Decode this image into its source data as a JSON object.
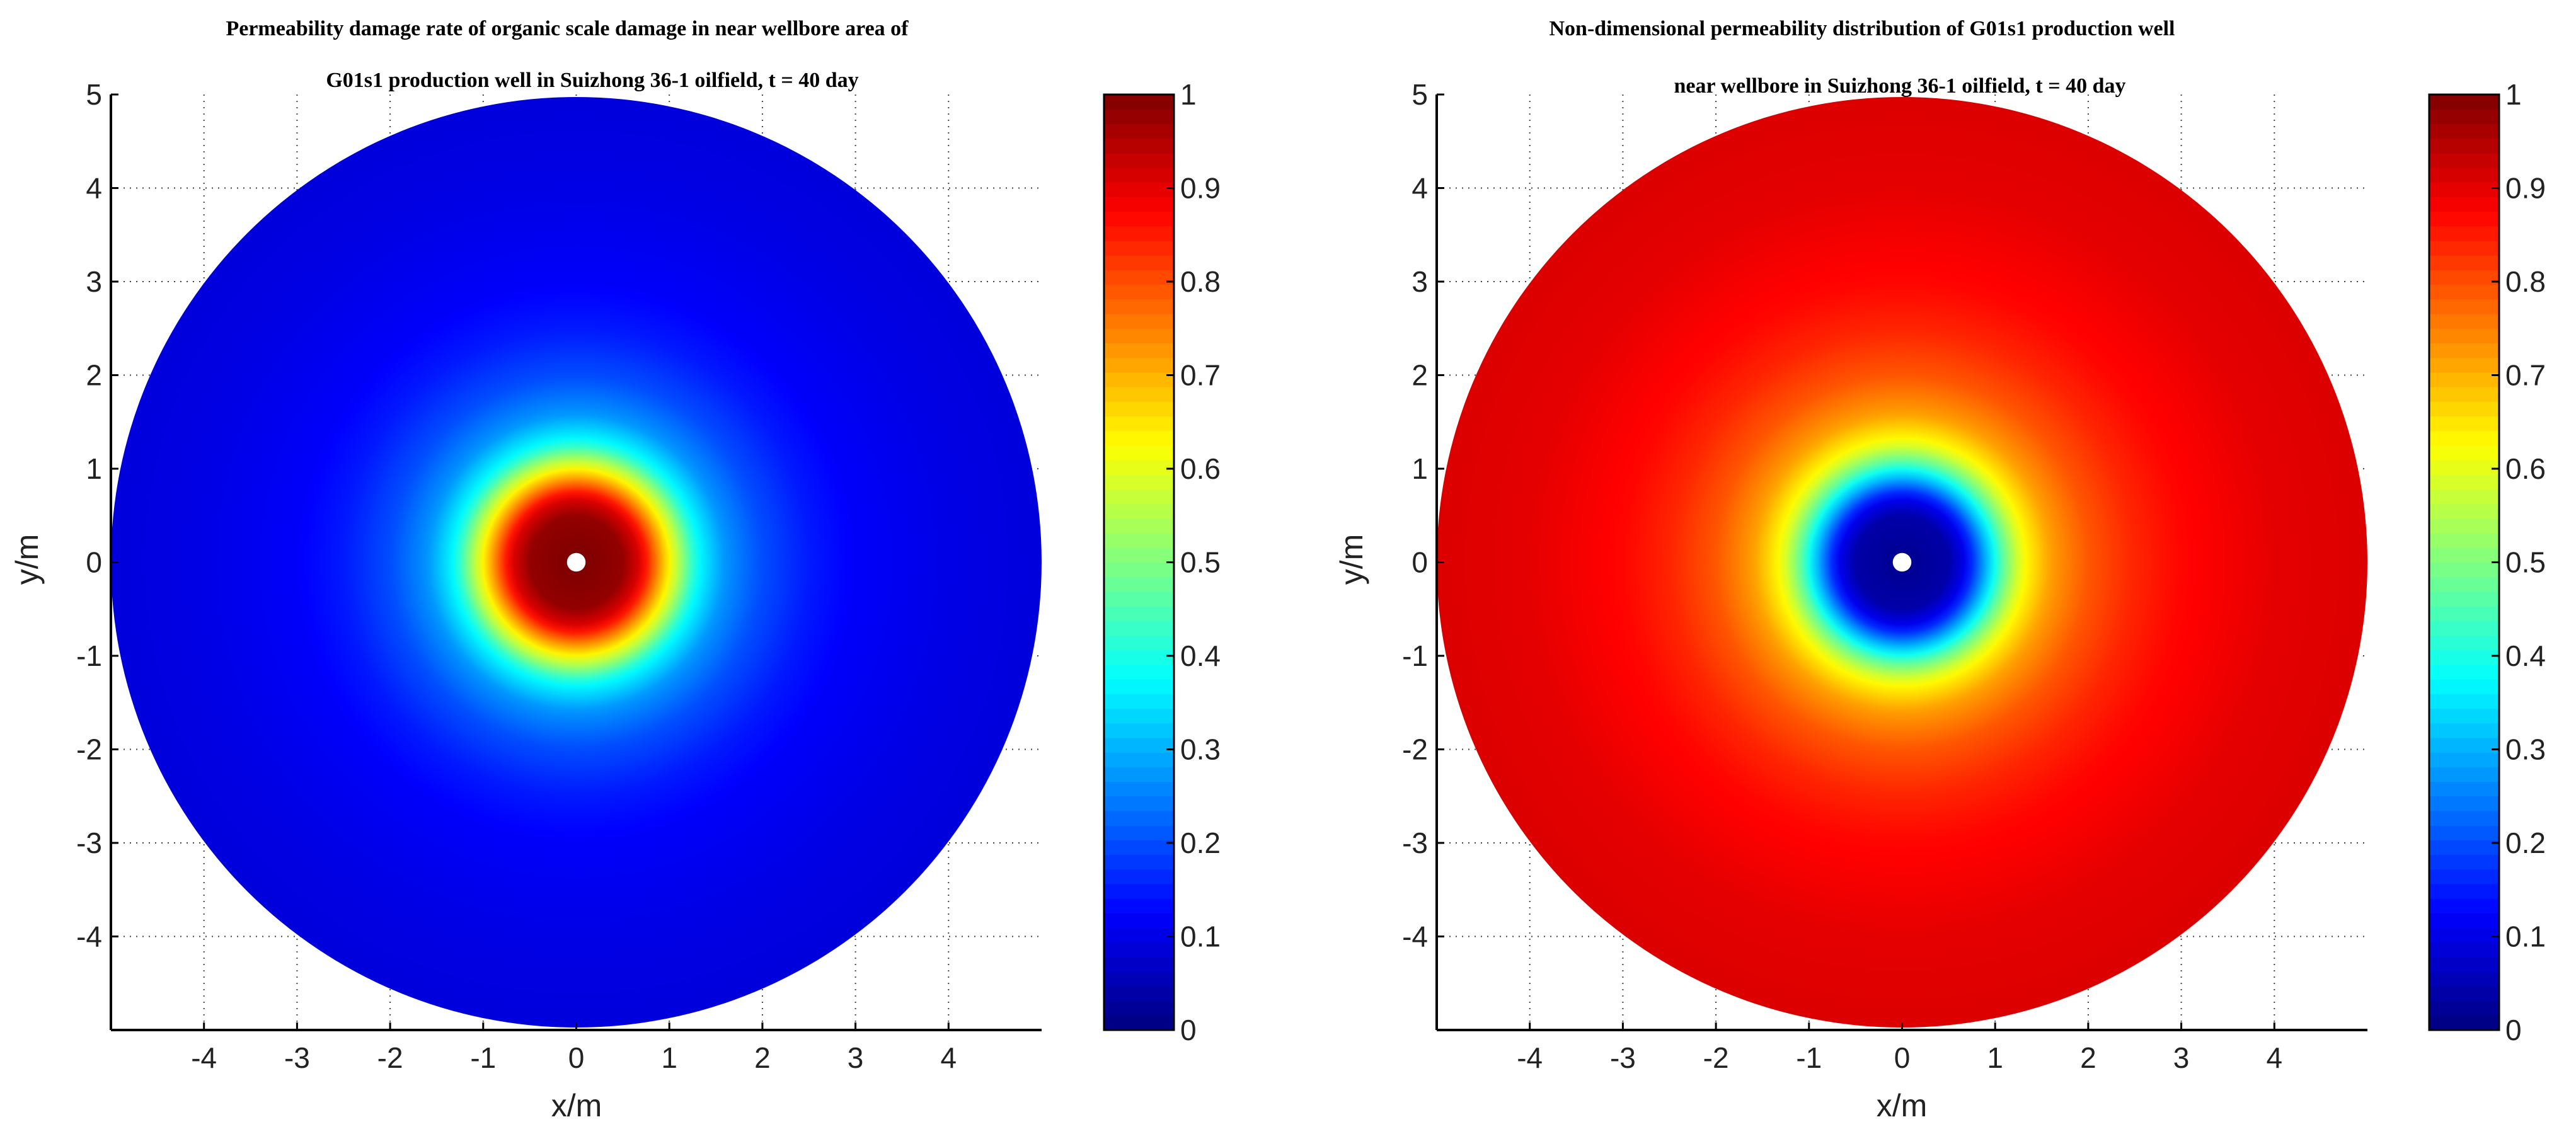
{
  "chart_data": [
    {
      "type": "heatmap",
      "title_line1": "Permeability damage rate of organic scale damage in near wellbore area of",
      "title_line2": "G01s1 production well in Suizhong 36-1 oilfield,  t = 40 day",
      "xlabel": "x/m",
      "ylabel": "y/m",
      "xlim": [
        -5,
        5
      ],
      "ylim": [
        -5,
        5
      ],
      "xticks": [
        "-4",
        "-3",
        "-2",
        "-1",
        "0",
        "1",
        "2",
        "3",
        "4"
      ],
      "yticks": [
        "5",
        "4",
        "3",
        "2",
        "1",
        "0",
        "-1",
        "-2",
        "-3",
        "-4"
      ],
      "grid": true,
      "colormap": "jet",
      "clim": [
        0,
        1
      ],
      "colorbar_ticks": [
        "1",
        "0.9",
        "0.8",
        "0.7",
        "0.6",
        "0.5",
        "0.4",
        "0.3",
        "0.2",
        "0.1",
        "0"
      ],
      "domain_radius": 5,
      "wellbore_radius": 0.1,
      "radial_profile": {
        "r": [
          0.1,
          0.5,
          0.7,
          0.9,
          1.1,
          1.3,
          1.6,
          2.0,
          2.5,
          3.0,
          4.0,
          5.0
        ],
        "value": [
          1.0,
          0.98,
          0.9,
          0.72,
          0.55,
          0.38,
          0.27,
          0.2,
          0.15,
          0.12,
          0.1,
          0.09
        ]
      }
    },
    {
      "type": "heatmap",
      "title_line1": "Non-dimensional permeability distribution of G01s1 production well",
      "title_line2": "near wellbore in Suizhong 36-1 oilfield,  t = 40 day",
      "xlabel": "x/m",
      "ylabel": "y/m",
      "xlim": [
        -5,
        5
      ],
      "ylim": [
        -5,
        5
      ],
      "xticks": [
        "-4",
        "-3",
        "-2",
        "-1",
        "0",
        "1",
        "2",
        "3",
        "4"
      ],
      "yticks": [
        "5",
        "4",
        "3",
        "2",
        "1",
        "0",
        "-1",
        "-2",
        "-3",
        "-4"
      ],
      "grid": true,
      "colormap": "jet",
      "clim": [
        0,
        1
      ],
      "colorbar_ticks": [
        "1",
        "0.9",
        "0.8",
        "0.7",
        "0.6",
        "0.5",
        "0.4",
        "0.3",
        "0.2",
        "0.1",
        "0"
      ],
      "domain_radius": 5,
      "wellbore_radius": 0.1,
      "radial_profile": {
        "r": [
          0.1,
          0.5,
          0.7,
          0.9,
          1.1,
          1.3,
          1.6,
          2.0,
          2.5,
          3.0,
          4.0,
          5.0
        ],
        "value": [
          0.02,
          0.04,
          0.12,
          0.3,
          0.48,
          0.62,
          0.72,
          0.79,
          0.84,
          0.87,
          0.9,
          0.91
        ]
      }
    }
  ]
}
